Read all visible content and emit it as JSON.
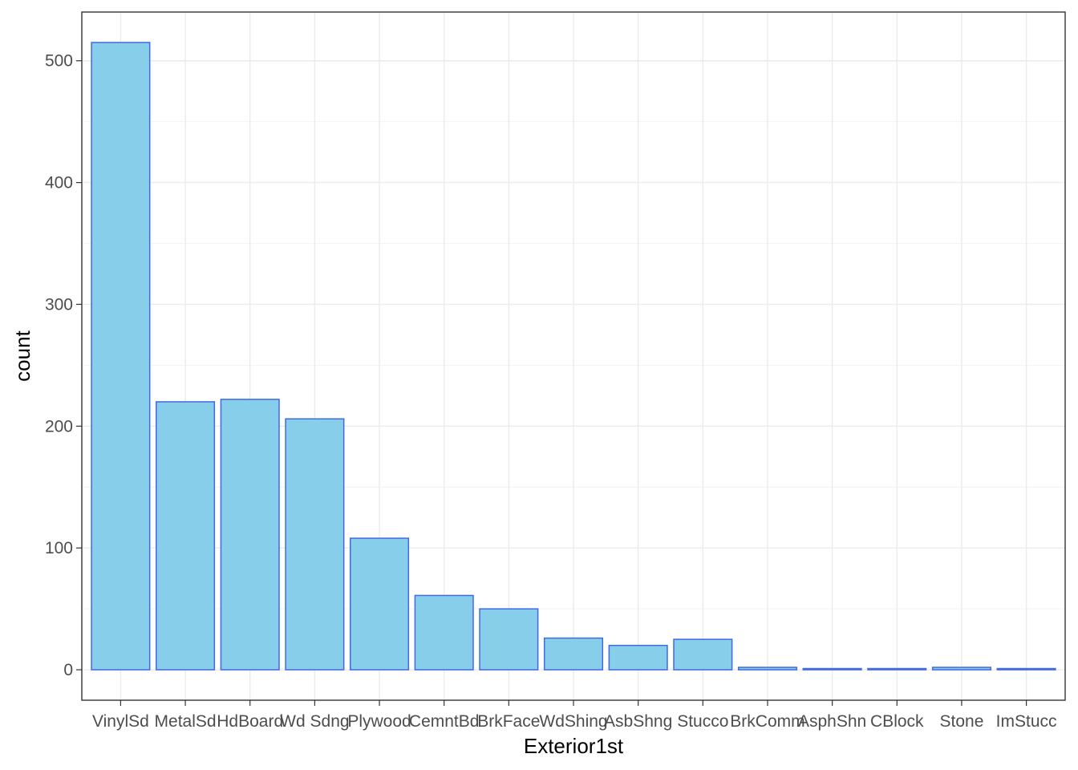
{
  "chart_data": {
    "type": "bar",
    "xlabel": "Exterior1st",
    "ylabel": "count",
    "categories": [
      "VinylSd",
      "MetalSd",
      "HdBoard",
      "Wd Sdng",
      "Plywood",
      "CemntBd",
      "BrkFace",
      "WdShing",
      "AsbShng",
      "Stucco",
      "BrkComm",
      "AsphShn",
      "CBlock",
      "Stone",
      "ImStucc"
    ],
    "values": [
      515,
      220,
      222,
      206,
      108,
      61,
      50,
      26,
      20,
      25,
      2,
      1,
      1,
      2,
      1
    ],
    "ylim": [
      -25,
      540
    ],
    "yticks": [
      0,
      100,
      200,
      300,
      400,
      500
    ],
    "ytick_labels": [
      "0",
      "100",
      "200",
      "300",
      "400",
      "500"
    ],
    "grid": true,
    "bar_fill": "#87ceeb",
    "bar_outline": "#4169e1",
    "theme": "bw"
  }
}
